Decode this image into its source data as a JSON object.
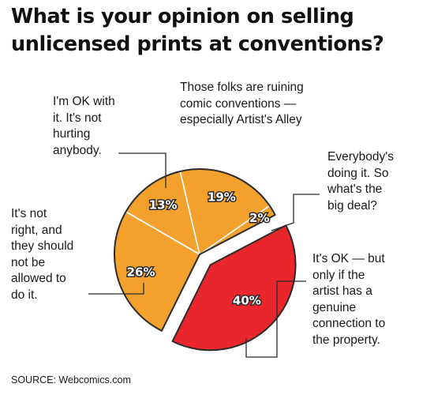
{
  "title_lines": [
    "What is your opinion on selling",
    "unlicensed prints at conventions?"
  ],
  "source": "SOURCE: Webcomics.com",
  "colors": {
    "orange": "#f3a02c",
    "red": "#e8262c",
    "outline": "#2b2b2b"
  },
  "chart_data": {
    "type": "pie",
    "slices": [
      {
        "label": "I'm OK with it. It's not hurting anybody.",
        "label_lines": [
          "I'm OK with",
          "it. It's not",
          "hurting",
          "anybody."
        ],
        "value": 13,
        "value_label": "13%",
        "color": "#f3a02c",
        "exploded": false
      },
      {
        "label": "Those folks are ruining comic conventions — especially Artist's Alley",
        "label_lines": [
          "Those folks are ruining",
          "comic conventions —",
          "especially Artist's Alley"
        ],
        "value": 19,
        "value_label": "19%",
        "color": "#f3a02c",
        "exploded": false
      },
      {
        "label": "Everybody's doing it. So what's the big deal?",
        "label_lines": [
          "Everybody's",
          "doing it. So",
          "what's the",
          "big deal?"
        ],
        "value": 2,
        "value_label": "2%",
        "color": "#f3a02c",
        "exploded": false
      },
      {
        "label": "It's OK — but only if the artist has a genuine connection to the property.",
        "label_lines": [
          "It's OK — but",
          "only if the",
          "artist has a",
          "genuine",
          "connection to",
          "the property."
        ],
        "value": 40,
        "value_label": "40%",
        "color": "#e8262c",
        "exploded": true
      },
      {
        "label": "It's not right, and they should not be allowed to do it.",
        "label_lines": [
          "It's not",
          "right, and",
          "they should",
          "not be",
          "allowed to",
          "do it."
        ],
        "value": 26,
        "value_label": "26%",
        "color": "#f3a02c",
        "exploded": false
      }
    ]
  }
}
